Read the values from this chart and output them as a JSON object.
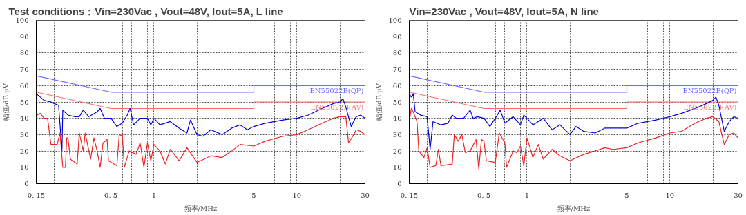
{
  "chart_data": [
    {
      "type": "line",
      "title": "Test conditions：Vin=230Vac , Vout=48V, Iout=5A, L line",
      "xlabel": "频率/MHz",
      "ylabel": "幅值/dB μV",
      "log": "x",
      "grid": true,
      "marker": "none",
      "line_style": "solid",
      "xlim": [
        0.15,
        30
      ],
      "ylim": [
        0,
        100
      ],
      "xticks": [
        {
          "value": 0.15,
          "label": "0. 15"
        },
        {
          "value": 0.2,
          "label": null
        },
        {
          "value": 0.3,
          "label": null
        },
        {
          "value": 0.4,
          "label": null
        },
        {
          "value": 0.5,
          "label": "0. 5"
        },
        {
          "value": 0.6,
          "label": null
        },
        {
          "value": 0.7,
          "label": null
        },
        {
          "value": 0.8,
          "label": null
        },
        {
          "value": 0.9,
          "label": null
        },
        1,
        {
          "value": 2,
          "label": null
        },
        {
          "value": 3,
          "label": null
        },
        {
          "value": 4,
          "label": null
        },
        5,
        {
          "value": 6,
          "label": null
        },
        {
          "value": 7,
          "label": null
        },
        {
          "value": 8,
          "label": null
        },
        {
          "value": 9,
          "label": null
        },
        10,
        {
          "value": 20,
          "label": null
        },
        30
      ],
      "yticks": [
        0,
        10,
        20,
        30,
        40,
        50,
        60,
        70,
        80,
        90,
        100
      ],
      "series": [
        {
          "name": "EN55022B(QP)",
          "color": "#6b6bff",
          "x": [
            0.15,
            0.5,
            5,
            5,
            30
          ],
          "values": [
            66,
            56,
            56,
            60,
            60
          ]
        },
        {
          "name": "EN55022B(AV)",
          "color": "#ff6b6b",
          "x": [
            0.15,
            0.5,
            5,
            5,
            30
          ],
          "values": [
            56,
            46,
            46,
            50,
            50
          ]
        },
        {
          "color": "#0000dd",
          "x": [
            0.15,
            0.16,
            0.17,
            0.19,
            0.2,
            0.215,
            0.227,
            0.23,
            0.25,
            0.28,
            0.3,
            0.32,
            0.35,
            0.4,
            0.42,
            0.45,
            0.5,
            0.55,
            0.6,
            0.65,
            0.68,
            0.72,
            0.8,
            0.9,
            0.95,
            1.0,
            1.1,
            1.3,
            1.5,
            1.7,
            1.8,
            2.0,
            2.2,
            2.5,
            3,
            3.5,
            4,
            4.5,
            5,
            6,
            7,
            8,
            10,
            12,
            15,
            18,
            20,
            21,
            22,
            24,
            26,
            28,
            30
          ],
          "values": [
            55,
            53,
            51,
            50,
            49,
            48,
            20,
            45,
            42,
            41,
            41,
            45,
            41,
            44,
            46,
            40,
            40,
            35,
            37,
            42,
            46,
            36,
            40,
            40,
            36,
            40,
            36,
            38,
            34,
            31,
            39,
            30,
            29,
            33,
            30,
            34,
            36,
            33,
            35,
            37,
            38,
            39,
            40,
            42,
            46,
            49,
            50,
            52,
            47,
            35,
            41,
            42,
            40
          ]
        },
        {
          "color": "#ee2222",
          "x": [
            0.15,
            0.152,
            0.16,
            0.17,
            0.18,
            0.19,
            0.21,
            0.22,
            0.23,
            0.24,
            0.245,
            0.25,
            0.26,
            0.29,
            0.3,
            0.32,
            0.33,
            0.36,
            0.38,
            0.4,
            0.42,
            0.44,
            0.47,
            0.48,
            0.55,
            0.57,
            0.6,
            0.62,
            0.67,
            0.75,
            0.8,
            0.85,
            0.9,
            0.95,
            1.0,
            1.1,
            1.2,
            1.3,
            1.5,
            1.7,
            2,
            2.5,
            3,
            3.5,
            4,
            5,
            6,
            8,
            10,
            12,
            15,
            18,
            20,
            22,
            23,
            25,
            26,
            28,
            30
          ],
          "values": [
            30,
            42,
            43,
            40,
            40,
            24,
            24,
            31,
            10,
            10,
            28,
            28,
            15,
            12,
            31,
            20,
            31,
            15,
            28,
            20,
            10,
            25,
            27,
            14,
            11,
            29,
            30,
            10,
            20,
            18,
            25,
            10,
            25,
            14,
            24,
            20,
            12,
            21,
            14,
            22,
            13,
            17,
            16,
            20,
            24,
            23,
            26,
            29,
            30,
            33,
            37,
            40,
            41,
            41,
            25,
            30,
            33,
            32,
            30
          ]
        }
      ]
    },
    {
      "type": "line",
      "title": "Vin=230Vac , Vout=48V, Iout=5A, N line",
      "xlabel": "频率/MHz",
      "ylabel": "幅值/dB μV",
      "log": "x",
      "grid": true,
      "marker": "none",
      "line_style": "solid",
      "xlim": [
        0.15,
        30
      ],
      "ylim": [
        0,
        100
      ],
      "xticks": [
        {
          "value": 0.15,
          "label": "0. 15"
        },
        {
          "value": 0.2,
          "label": null
        },
        {
          "value": 0.3,
          "label": null
        },
        {
          "value": 0.4,
          "label": null
        },
        {
          "value": 0.5,
          "label": "0. 5"
        },
        {
          "value": 0.6,
          "label": null
        },
        {
          "value": 0.7,
          "label": null
        },
        {
          "value": 0.8,
          "label": null
        },
        {
          "value": 0.9,
          "label": null
        },
        1,
        {
          "value": 2,
          "label": null
        },
        {
          "value": 3,
          "label": null
        },
        {
          "value": 4,
          "label": null
        },
        5,
        {
          "value": 6,
          "label": null
        },
        {
          "value": 7,
          "label": null
        },
        {
          "value": 8,
          "label": null
        },
        {
          "value": 9,
          "label": null
        },
        10,
        {
          "value": 20,
          "label": null
        },
        30
      ],
      "yticks": [
        0,
        10,
        20,
        30,
        40,
        50,
        60,
        70,
        80,
        90,
        100
      ],
      "series": [
        {
          "name": "EN55022B(QP)",
          "color": "#6b6bff",
          "x": [
            0.15,
            0.5,
            5,
            5,
            30
          ],
          "values": [
            66,
            56,
            56,
            60,
            60
          ]
        },
        {
          "name": "EN55022B(AV)",
          "color": "#ff6b6b",
          "x": [
            0.15,
            0.5,
            5,
            5,
            30
          ],
          "values": [
            56,
            46,
            46,
            50,
            50
          ]
        },
        {
          "color": "#0000dd",
          "x": [
            0.15,
            0.155,
            0.16,
            0.165,
            0.18,
            0.2,
            0.21,
            0.22,
            0.25,
            0.28,
            0.3,
            0.32,
            0.36,
            0.4,
            0.42,
            0.45,
            0.5,
            0.55,
            0.6,
            0.65,
            0.7,
            0.8,
            0.9,
            0.95,
            1,
            1.1,
            1.3,
            1.5,
            1.7,
            2,
            2.2,
            2.5,
            3,
            3.5,
            4,
            5,
            6,
            7,
            8,
            10,
            12,
            15,
            18,
            20,
            21,
            22,
            24,
            26,
            28,
            30
          ],
          "values": [
            55,
            53,
            55,
            44,
            42,
            41,
            21,
            38,
            36,
            37,
            42,
            40,
            40,
            45,
            40,
            41,
            40,
            35,
            40,
            45,
            37,
            41,
            36,
            42,
            40,
            36,
            40,
            33,
            36,
            30,
            35,
            32,
            31,
            34,
            34,
            34,
            37,
            38,
            39,
            41,
            43,
            46,
            49,
            51,
            53,
            48,
            32,
            38,
            41,
            40
          ]
        },
        {
          "color": "#ee2222",
          "x": [
            0.15,
            0.155,
            0.16,
            0.17,
            0.175,
            0.19,
            0.2,
            0.21,
            0.23,
            0.24,
            0.25,
            0.3,
            0.31,
            0.33,
            0.35,
            0.37,
            0.4,
            0.44,
            0.46,
            0.48,
            0.5,
            0.52,
            0.6,
            0.64,
            0.7,
            0.72,
            0.8,
            0.85,
            0.9,
            0.95,
            1.0,
            1.1,
            1.2,
            1.3,
            1.5,
            1.7,
            2,
            2.5,
            3,
            3.5,
            4,
            5,
            6,
            8,
            10,
            12,
            15,
            18,
            20,
            22,
            24,
            26,
            28,
            30
          ],
          "values": [
            38,
            46,
            44,
            38,
            20,
            16,
            22,
            10,
            11,
            21,
            11,
            12,
            30,
            26,
            30,
            19,
            20,
            27,
            9,
            27,
            26,
            14,
            13,
            31,
            25,
            10,
            20,
            19,
            23,
            11,
            28,
            16,
            24,
            15,
            21,
            17,
            14,
            18,
            20,
            22,
            21,
            22,
            25,
            28,
            31,
            32,
            37,
            40,
            41,
            38,
            24,
            30,
            31,
            28
          ]
        }
      ]
    }
  ]
}
